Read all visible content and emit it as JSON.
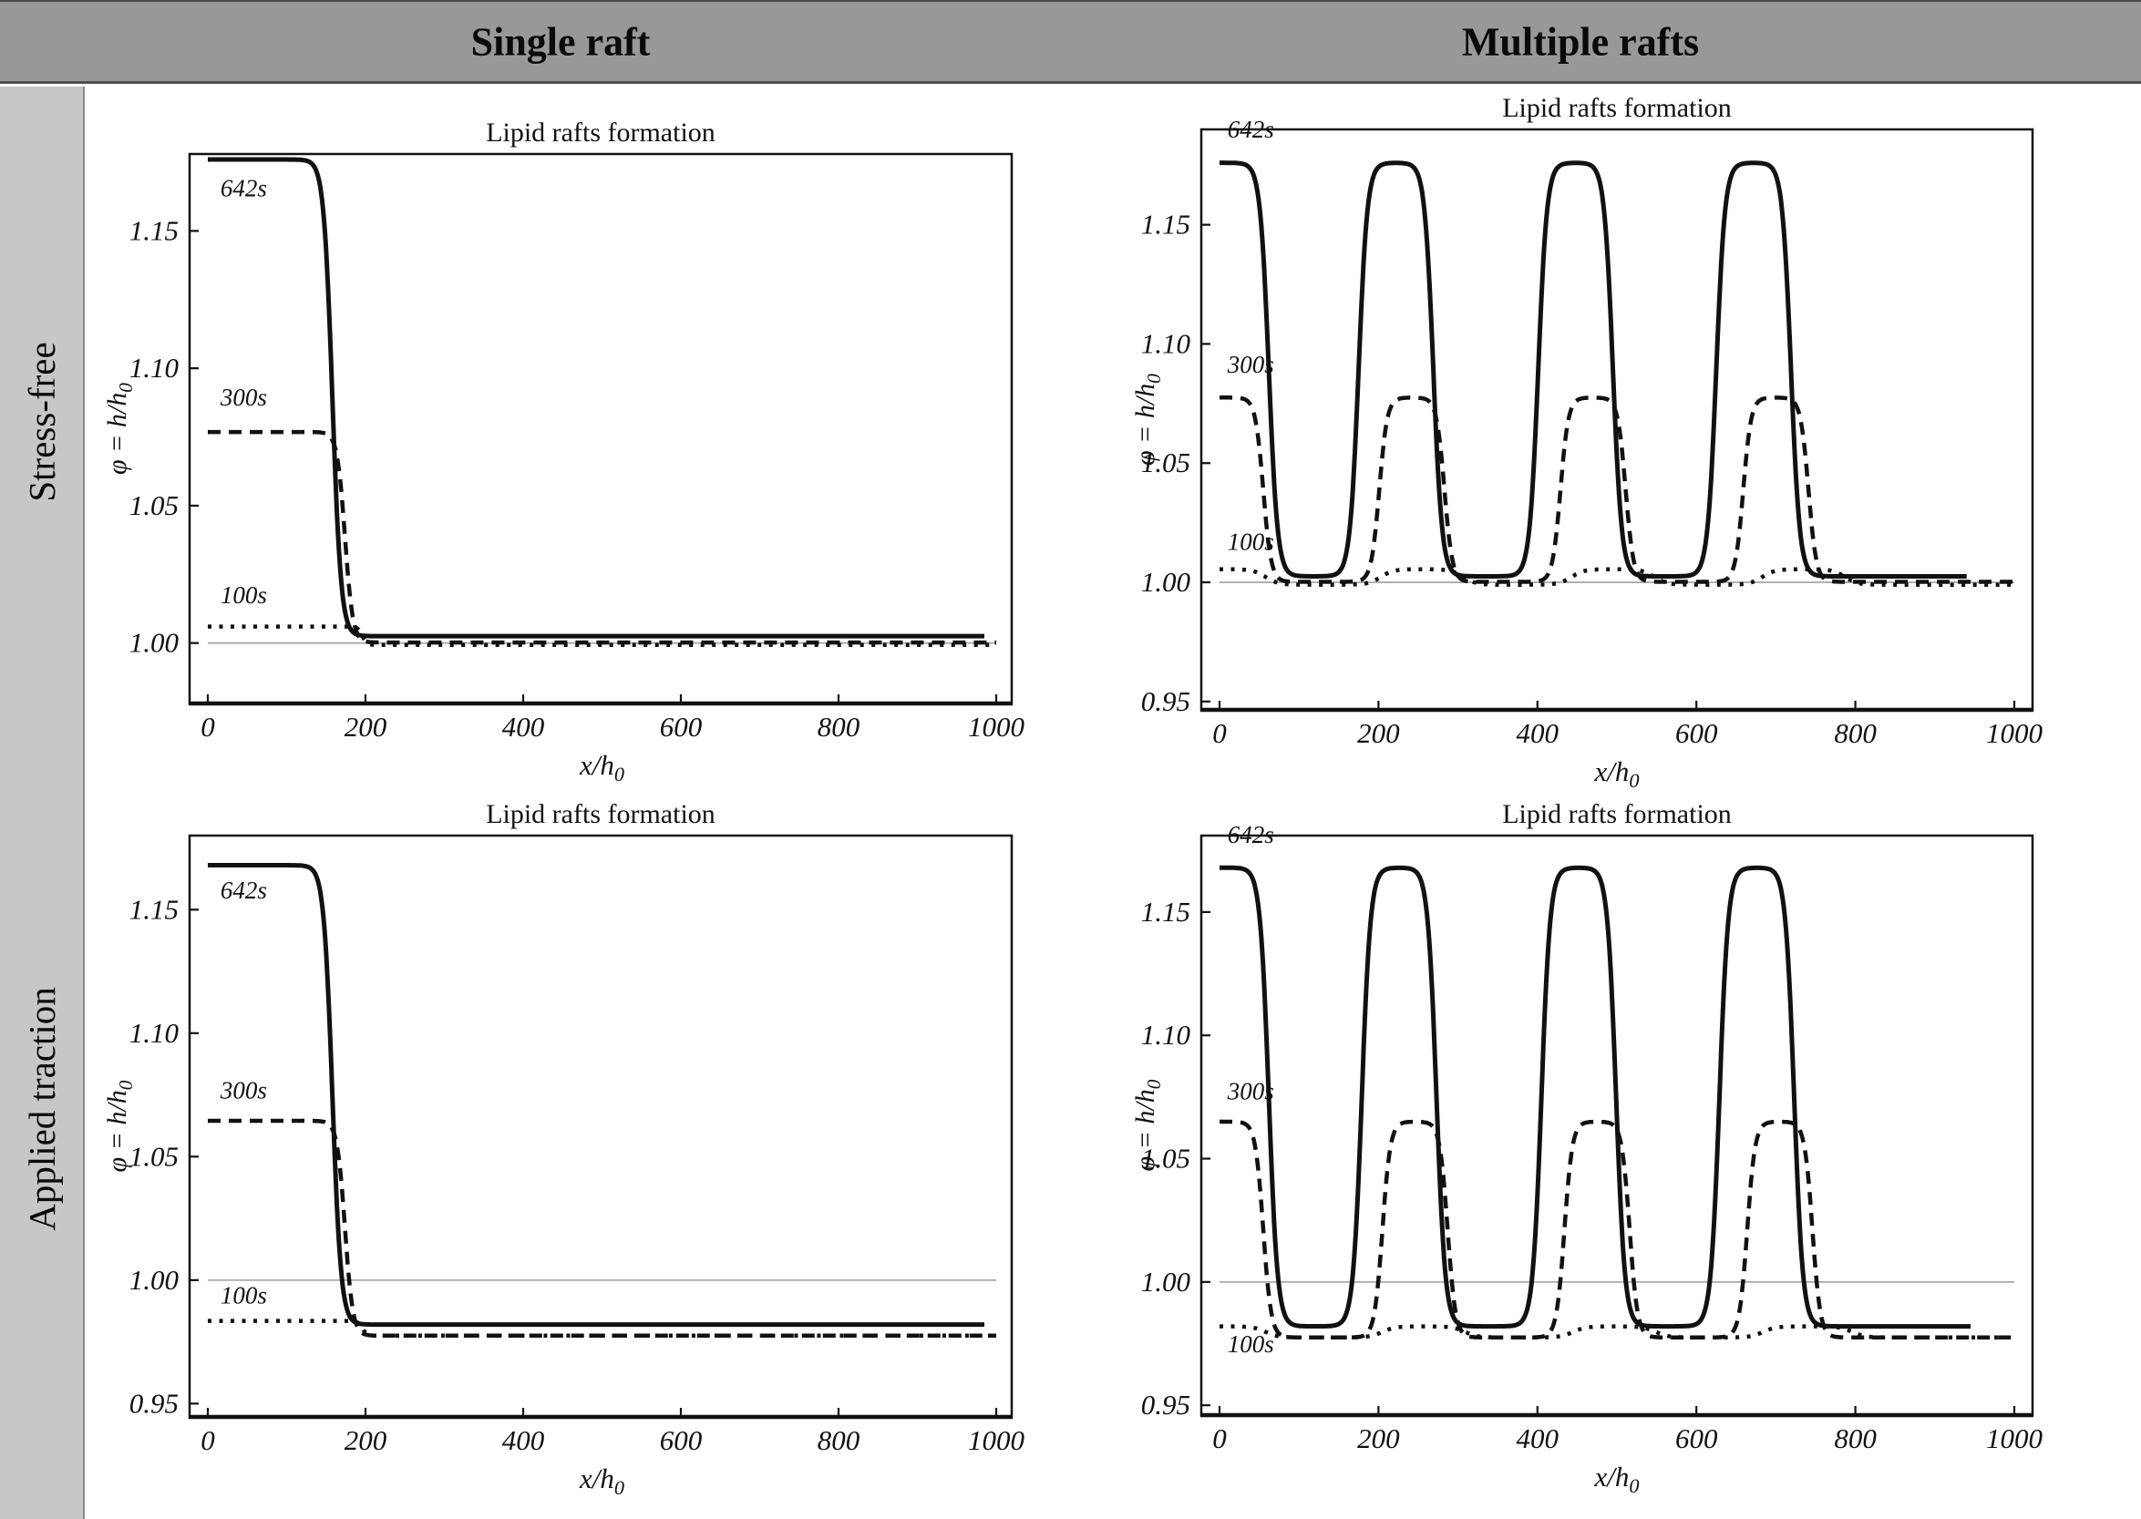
{
  "header": {
    "bg": "#989898",
    "border": "#4f4f4f",
    "columns": [
      {
        "label": "Single raft"
      },
      {
        "label": "Multiple rafts"
      }
    ]
  },
  "sidebar": {
    "bg": "#c7c7c7",
    "border": "#8a8a8a",
    "rows": [
      {
        "label": "Stress-free"
      },
      {
        "label": "Applied traction"
      }
    ]
  },
  "colors": {
    "curve": "#111111",
    "frame": "#111111",
    "reference_line": "#ababab",
    "text": "#111111"
  },
  "chart_data": [
    {
      "id": "stress-free-single",
      "row": "Stress-free",
      "col": "Single raft",
      "type": "line",
      "title": "Lipid rafts formation",
      "xlabel": "x/h_0",
      "ylabel": "φ = h/h_0",
      "xlim": [
        0,
        1000
      ],
      "ylim": [
        0.978,
        1.178
      ],
      "xticks": [
        0,
        200,
        400,
        600,
        800,
        1000
      ],
      "yticks": [
        "1.00",
        "1.05",
        "1.10",
        "1.15"
      ],
      "grid": false,
      "legend": "inline-curve-labels",
      "ref_line_y": 1.0,
      "series": [
        {
          "name": "642s",
          "style": "solid",
          "base": 1.0025,
          "top": 1.176,
          "transition": 11,
          "rafts": [
            {
              "center": 0,
              "half_width": 158
            }
          ],
          "xend": 985,
          "label_pos": [
            16,
            1.1625
          ]
        },
        {
          "name": "300s",
          "style": "dashed",
          "base": 1.0002,
          "top": 1.0768,
          "transition": 10,
          "rafts": [
            {
              "center": 0,
              "half_width": 174
            }
          ],
          "xend": 1000,
          "label_pos": [
            16,
            1.0865
          ]
        },
        {
          "name": "100s",
          "style": "dotted",
          "base": 0.9993,
          "top": 1.006,
          "transition": 6,
          "rafts": [
            {
              "center": 0,
              "half_width": 196
            }
          ],
          "xend": 1000,
          "label_pos": [
            16,
            1.0145
          ]
        }
      ]
    },
    {
      "id": "stress-free-multiple",
      "row": "Stress-free",
      "col": "Multiple rafts",
      "type": "line",
      "title": "Lipid rafts formation",
      "xlabel": "x/h_0",
      "ylabel": "φ = h/h_0",
      "xlim": [
        0,
        1000
      ],
      "ylim": [
        0.9465,
        1.19
      ],
      "xticks": [
        0,
        200,
        400,
        600,
        800,
        1000
      ],
      "yticks": [
        "0.95",
        "1.00",
        "1.05",
        "1.10",
        "1.15"
      ],
      "grid": false,
      "legend": "inline-curve-labels",
      "ref_line_y": 1.0,
      "series": [
        {
          "name": "642s",
          "style": "solid",
          "base": 1.0025,
          "top": 1.176,
          "transition": 11,
          "rafts": [
            {
              "center": 0,
              "half_width": 62
            },
            {
              "center": 222,
              "half_width": 47
            },
            {
              "center": 448,
              "half_width": 47
            },
            {
              "center": 672,
              "half_width": 47
            }
          ],
          "xend": 940,
          "label_pos": [
            10,
            1.1865
          ]
        },
        {
          "name": "300s",
          "style": "dashed",
          "base": 1.0002,
          "top": 1.0775,
          "transition": 10,
          "rafts": [
            {
              "center": 0,
              "half_width": 55
            },
            {
              "center": 242,
              "half_width": 41
            },
            {
              "center": 470,
              "half_width": 41
            },
            {
              "center": 700,
              "half_width": 41
            }
          ],
          "xend": 1000,
          "label_pos": [
            10,
            1.088
          ]
        },
        {
          "name": "100s",
          "style": "dotted",
          "base": 0.999,
          "top": 1.0055,
          "transition": 16,
          "rafts": [
            {
              "center": 0,
              "half_width": 58
            },
            {
              "center": 255,
              "half_width": 52
            },
            {
              "center": 495,
              "half_width": 52
            },
            {
              "center": 735,
              "half_width": 52
            }
          ],
          "xend": 1000,
          "label_pos": [
            10,
            1.0135
          ]
        }
      ]
    },
    {
      "id": "applied-traction-single",
      "row": "Applied traction",
      "col": "Single raft",
      "type": "line",
      "title": "Lipid rafts formation",
      "xlabel": "x/h_0",
      "ylabel": "φ = h/h_0",
      "xlim": [
        0,
        1000
      ],
      "ylim": [
        0.9446,
        1.18
      ],
      "xticks": [
        0,
        200,
        400,
        600,
        800,
        1000
      ],
      "yticks": [
        "0.95",
        "1.00",
        "1.05",
        "1.10",
        "1.15"
      ],
      "grid": false,
      "legend": "inline-curve-labels",
      "ref_line_y": 1.0,
      "series": [
        {
          "name": "642s",
          "style": "solid",
          "base": 0.982,
          "top": 1.168,
          "transition": 11,
          "rafts": [
            {
              "center": 0,
              "half_width": 158
            }
          ],
          "xend": 985,
          "label_pos": [
            16,
            1.1545
          ]
        },
        {
          "name": "300s",
          "style": "dashed",
          "base": 0.9775,
          "top": 1.0645,
          "transition": 10,
          "rafts": [
            {
              "center": 0,
              "half_width": 174
            }
          ],
          "xend": 1000,
          "label_pos": [
            16,
            1.0735
          ]
        },
        {
          "name": "100s",
          "style": "dotted",
          "base": 0.9775,
          "top": 0.9835,
          "transition": 6,
          "rafts": [
            {
              "center": 0,
              "half_width": 196
            }
          ],
          "xend": 1000,
          "label_pos": [
            16,
            0.9905
          ]
        }
      ]
    },
    {
      "id": "applied-traction-multiple",
      "row": "Applied traction",
      "col": "Multiple rafts",
      "type": "line",
      "title": "Lipid rafts formation",
      "xlabel": "x/h_0",
      "ylabel": "φ = h/h_0",
      "xlim": [
        0,
        1000
      ],
      "ylim": [
        0.946,
        1.181
      ],
      "xticks": [
        0,
        200,
        400,
        600,
        800,
        1000
      ],
      "yticks": [
        "0.95",
        "1.00",
        "1.05",
        "1.10",
        "1.15"
      ],
      "grid": false,
      "legend": "inline-curve-labels",
      "ref_line_y": 1.0,
      "series": [
        {
          "name": "642s",
          "style": "solid",
          "base": 0.982,
          "top": 1.168,
          "transition": 11,
          "rafts": [
            {
              "center": 0,
              "half_width": 62
            },
            {
              "center": 226,
              "half_width": 47
            },
            {
              "center": 452,
              "half_width": 47
            },
            {
              "center": 676,
              "half_width": 47
            }
          ],
          "xend": 945,
          "label_pos": [
            10,
            1.178
          ]
        },
        {
          "name": "300s",
          "style": "dashed",
          "base": 0.9775,
          "top": 1.065,
          "transition": 10,
          "rafts": [
            {
              "center": 0,
              "half_width": 55
            },
            {
              "center": 246,
              "half_width": 41
            },
            {
              "center": 475,
              "half_width": 41
            },
            {
              "center": 705,
              "half_width": 41
            }
          ],
          "xend": 1000,
          "label_pos": [
            10,
            1.074
          ]
        },
        {
          "name": "100s",
          "style": "dotted",
          "base": 0.9775,
          "top": 0.982,
          "transition": 16,
          "rafts": [
            {
              "center": 0,
              "half_width": 58
            },
            {
              "center": 257,
              "half_width": 52
            },
            {
              "center": 497,
              "half_width": 52
            },
            {
              "center": 740,
              "half_width": 56
            }
          ],
          "xend": 1000,
          "label_pos": [
            10,
            0.9715
          ]
        }
      ]
    }
  ]
}
